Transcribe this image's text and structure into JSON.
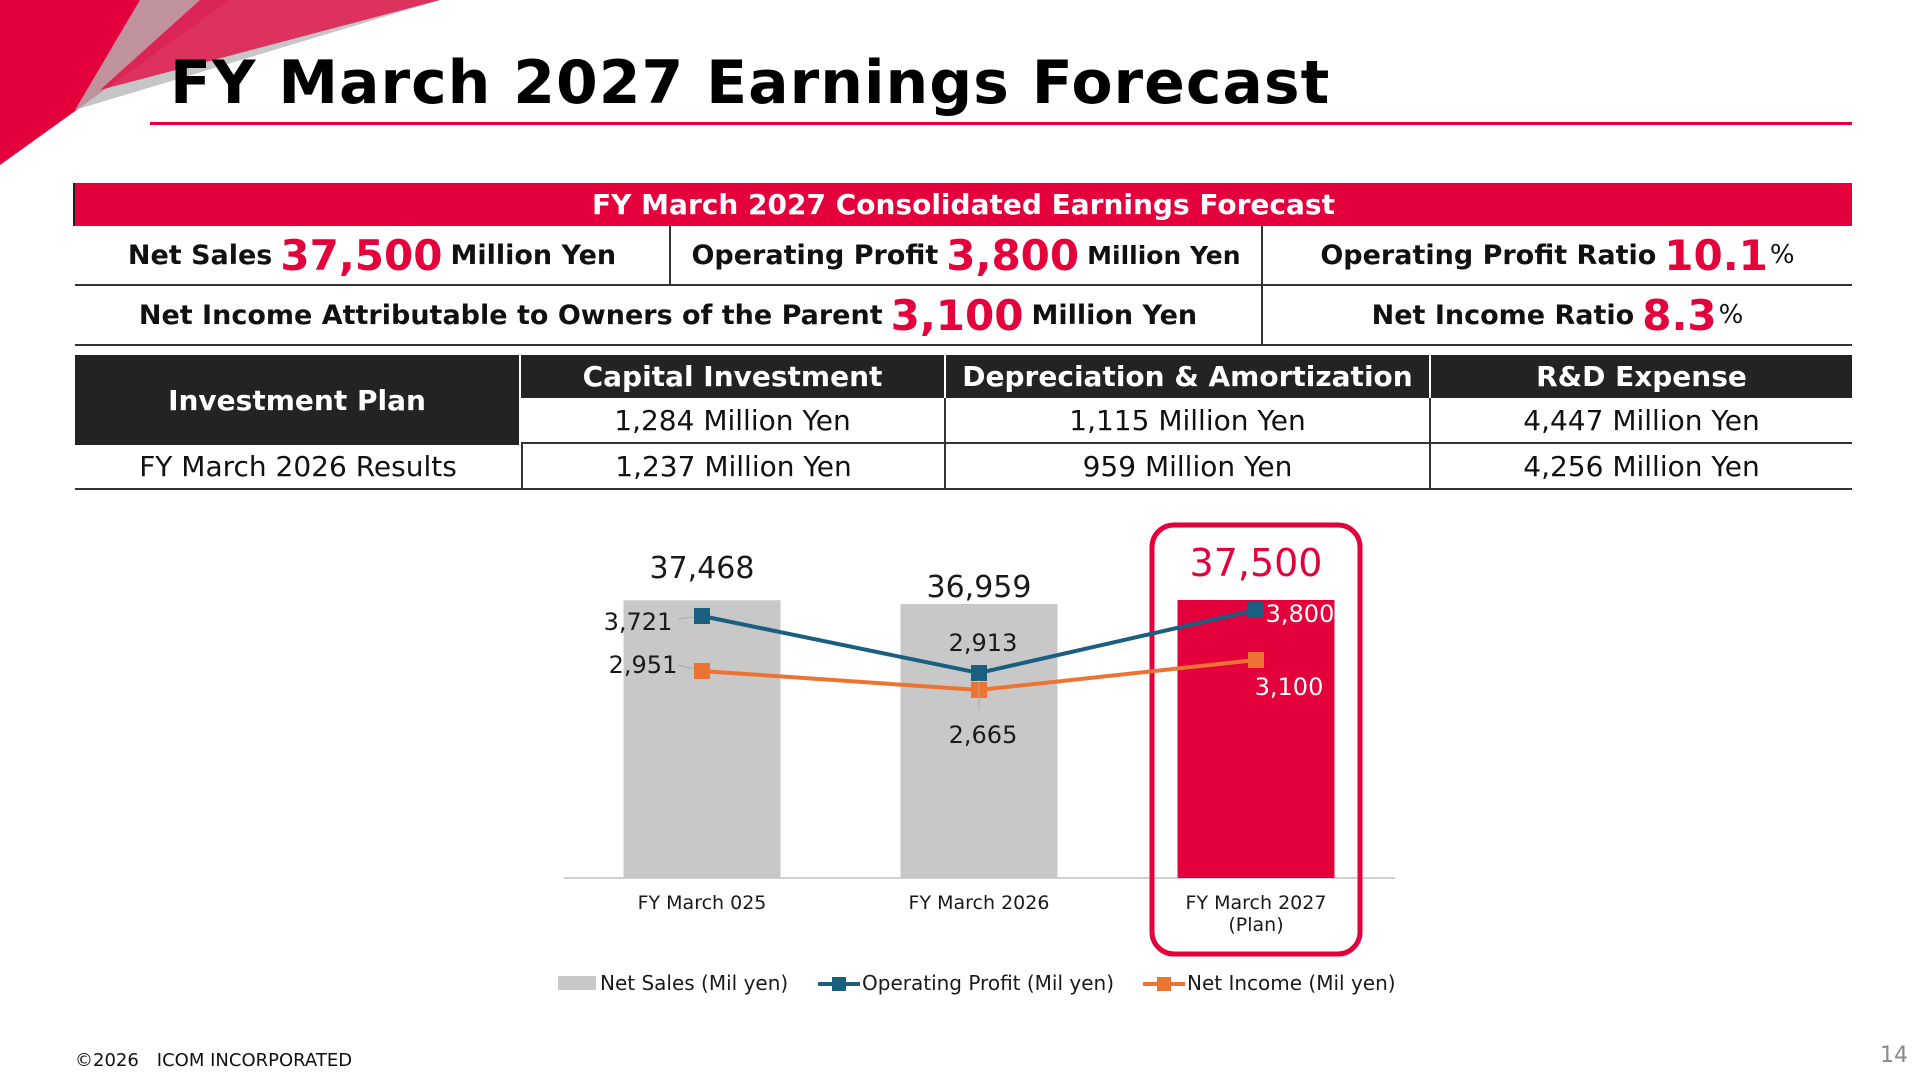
{
  "page_title": "FY March 2027 Earnings Forecast",
  "forecast": {
    "header": "FY March 2027 Consolidated Earnings Forecast",
    "net_sales": {
      "label": "Net Sales",
      "value": "37,500",
      "unit": "Million Yen"
    },
    "operating_profit": {
      "label": "Operating Profit",
      "value": "3,800",
      "unit": "Million Yen"
    },
    "operating_profit_ratio": {
      "label": "Operating Profit Ratio",
      "value": "10.1",
      "unit": "%"
    },
    "net_income": {
      "label": "Net Income Attributable to Owners of the Parent",
      "value": "3,100",
      "unit": "Million Yen"
    },
    "net_income_ratio": {
      "label": "Net Income Ratio",
      "value": "8.3",
      "unit": "%"
    }
  },
  "investment": {
    "label": "Investment Plan",
    "headers": [
      "Capital Investment",
      "Depreciation & Amortization",
      "R&D Expense"
    ],
    "plan": [
      "1,284 Million Yen",
      "1,115 Million Yen",
      "4,447 Million Yen"
    ],
    "results_label": "FY March 2026 Results",
    "results": [
      "1,237 Million Yen",
      "959 Million Yen",
      "4,256 Million Yen"
    ]
  },
  "chart_data": {
    "type": "bar",
    "categories": [
      "FY March 025",
      "FY March 2026",
      "FY March 2027\n(Plan)"
    ],
    "series": [
      {
        "name": "Net Sales (Mil yen)",
        "type": "bar",
        "values": [
          37468,
          36959,
          37500
        ],
        "labels": [
          "37,468",
          "36,959",
          "37,500"
        ]
      },
      {
        "name": "Operating Profit (Mil yen)",
        "type": "line",
        "values": [
          3721,
          2913,
          3800
        ],
        "labels": [
          "3,721",
          "2,913",
          "3,800"
        ]
      },
      {
        "name": "Net Income (Mil yen)",
        "type": "line",
        "values": [
          2951,
          2665,
          3100
        ],
        "labels": [
          "2,951",
          "2,665",
          "3,100"
        ]
      }
    ],
    "legend_position": "bottom",
    "colors": {
      "bar": "#c8c8c8",
      "bar_highlight": "#e4003b",
      "operating_profit": "#1a5f80",
      "net_income": "#ed7330"
    }
  },
  "colors": {
    "accent": "#e4003b",
    "dark": "#232323"
  },
  "footer": {
    "copyright": "©2026　ICOM INCORPORATED",
    "page": "14"
  }
}
